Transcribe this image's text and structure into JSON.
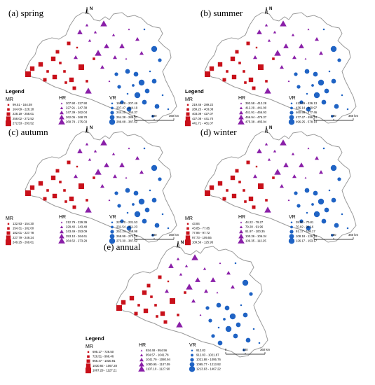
{
  "colors": {
    "MR": "#c8101a",
    "HR": "#8a1fa8",
    "VR": "#1f63c4",
    "outline": "#9a9a9a"
  },
  "legend_title": "Legend",
  "north_label": "N",
  "scale": {
    "zero": "0",
    "mid": "180",
    "max": "360 km"
  },
  "categories": {
    "MR": "MR",
    "HR": "HR",
    "VR": "VR"
  },
  "panels": [
    {
      "title": "(a) spring",
      "MR": [
        "99.51 - 164.08",
        "164.09 - 228.18",
        "228.19 - 258.01",
        "258.02 - 272.52",
        "272.53 - 293.52"
      ],
      "HR": [
        "207.90 - 227.90",
        "227.91 - 247.38",
        "247.39 - 262.04",
        "262.05 - 268.78",
        "268.79 - 275.03"
      ],
      "VR": [
        "196.28 - 207.46",
        "207.47 - 244.19",
        "244.20 - 264.37",
        "264.38 - 289.07",
        "289.08 - 387.62"
      ]
    },
    {
      "title": "(b) summer",
      "MR": [
        "219.46 - 289.22",
        "289.23 - 403.08",
        "403.09 - 427.07",
        "427.08 - 441.70",
        "441.71 - 481.07"
      ],
      "HR": [
        "393.58 - 412.28",
        "412.29 - 441.90",
        "441.91 - 466.93",
        "466.94 - 475.37",
        "475.38 - 485.94"
      ],
      "VR": [
        "412.69 - 436.13",
        "436.14 - 460.97",
        "460.98 - 477.46",
        "477.47 - 496.24",
        "496.25 - 578.14"
      ]
    },
    {
      "title": "(c) autumn",
      "MR": [
        "132.93 - 154.30",
        "154.31 - 182.00",
        "182.01 - 227.78",
        "227.79 - 249.24",
        "249.25 - 269.61"
      ],
      "HR": [
        "212.79 - 229.39",
        "229.40 - 243.48",
        "243.49 - 253.09",
        "253.10 - 264.61",
        "264.62 - 273.29"
      ],
      "VR": [
        "227.70 - 231.53",
        "231.54 - 251.23",
        "251.24 - 268.98",
        "268.99 - 273.29",
        "273.30 - 387.62"
      ]
    },
    {
      "title": "(d) winter",
      "MR": [
        "43.84",
        "43.85 - 77.85",
        "77.86 - 97.72",
        "97.73 - 109.55",
        "109.56 - 125.95"
      ],
      "HR": [
        "44.22 - 79.27",
        "79.28 - 91.96",
        "91.97 - 100.35",
        "100.36 - 106.34",
        "106.35 - 112.25"
      ],
      "VR": [
        "39.90 - 70.81",
        "70.82 - 91.16",
        "91.17 - 108.17",
        "108.18 - 126.16",
        "126.17 - 153.17"
      ]
    },
    {
      "title": "(e) annual",
      "MR": [
        "695.17 - 726.50",
        "726.51 - 966.46",
        "966.47 - 1030.91",
        "1030.92 - 1067.28",
        "1067.29 - 1127.21"
      ],
      "HR": [
        "934.48 - 954.56",
        "954.57 - 1041.78",
        "1041.79 - 1080.94",
        "1080.95 - 1107.09",
        "1107.10 - 1127.90"
      ],
      "VR": [
        "912.82",
        "912.83 - 1021.87",
        "1021.88 - 1095.76",
        "1095.77 - 1213.92",
        "1213.93 - 1467.22"
      ]
    }
  ]
}
